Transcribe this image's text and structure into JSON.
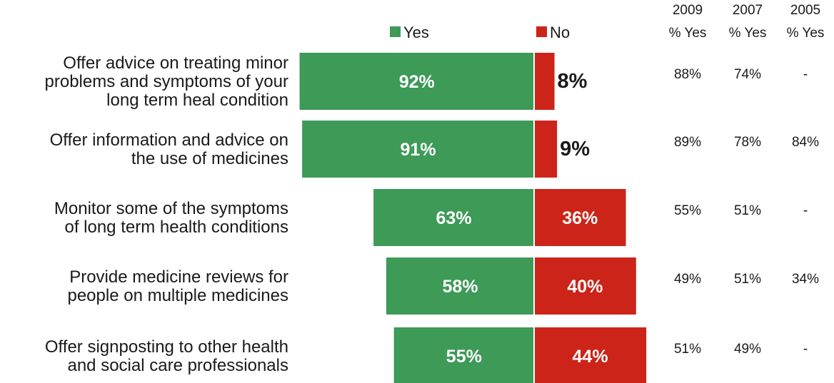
{
  "colors": {
    "yes": "#3d9a57",
    "no": "#cc2418",
    "text": "#1a1a1a",
    "divider": "#ffffff"
  },
  "legend": {
    "yes_label": "Yes",
    "no_label": "No"
  },
  "columns": [
    {
      "year": "2009",
      "label": "% Yes"
    },
    {
      "year": "2007",
      "label": "% Yes"
    },
    {
      "year": "2005",
      "label": "% Yes"
    }
  ],
  "chart_data": {
    "type": "bar",
    "orientation": "horizontal-diverging",
    "categories": [
      [
        "Offer advice on treating minor",
        "problems and symptoms of your",
        "long term heal condition"
      ],
      [
        "Offer information and advice on",
        "the use of medicines"
      ],
      [
        "Monitor some of the symptoms",
        "of long term health conditions"
      ],
      [
        "Provide medicine reviews for",
        "people on multiple medicines"
      ],
      [
        "Offer signposting to other health",
        "and social care professionals"
      ]
    ],
    "series": [
      {
        "name": "Yes",
        "values": [
          92,
          91,
          63,
          58,
          55
        ],
        "labels": [
          "92%",
          "91%",
          "63%",
          "58%",
          "55%"
        ]
      },
      {
        "name": "No",
        "values": [
          8,
          9,
          36,
          40,
          44
        ],
        "labels": [
          "8%",
          "9%",
          "36%",
          "40%",
          "44%"
        ]
      }
    ],
    "history": [
      [
        "88%",
        "74%",
        "-"
      ],
      [
        "89%",
        "78%",
        "84%"
      ],
      [
        "55%",
        "51%",
        "-"
      ],
      [
        "49%",
        "51%",
        "34%"
      ],
      [
        "51%",
        "49%",
        "-"
      ]
    ]
  }
}
